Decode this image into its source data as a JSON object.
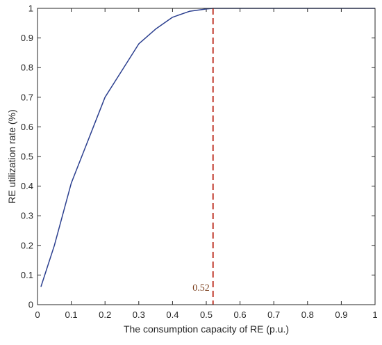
{
  "chart_data": {
    "type": "line",
    "title": "",
    "xlabel": "The consumption capacity of RE (p.u.)",
    "ylabel": "RE utilization rate (%)",
    "xlim": [
      0,
      1
    ],
    "ylim": [
      0,
      1
    ],
    "x_ticks": [
      "0",
      "0.1",
      "0.2",
      "0.3",
      "0.4",
      "0.5",
      "0.6",
      "0.7",
      "0.8",
      "0.9",
      "1"
    ],
    "y_ticks": [
      "0",
      "0.1",
      "0.2",
      "0.3",
      "0.4",
      "0.5",
      "0.6",
      "0.7",
      "0.8",
      "0.9",
      "1"
    ],
    "grid": false,
    "legend": "none",
    "series": [
      {
        "color": "#2b3f8f",
        "x": [
          0.01,
          0.05,
          0.1,
          0.15,
          0.2,
          0.25,
          0.3,
          0.35,
          0.4,
          0.45,
          0.5,
          0.52,
          0.55,
          0.6,
          0.7,
          0.8,
          0.9,
          1.0
        ],
        "y": [
          0.06,
          0.2,
          0.41,
          0.555,
          0.7,
          0.79,
          0.88,
          0.93,
          0.97,
          0.99,
          0.998,
          1.0,
          1.0,
          1.0,
          1.0,
          1.0,
          1.0,
          1.0
        ]
      }
    ],
    "annotations": [
      {
        "type": "vline",
        "x": 0.52,
        "color": "#c0392b",
        "style": "dashed",
        "label": "0.52",
        "label_color": "#7a3d1a"
      }
    ]
  }
}
